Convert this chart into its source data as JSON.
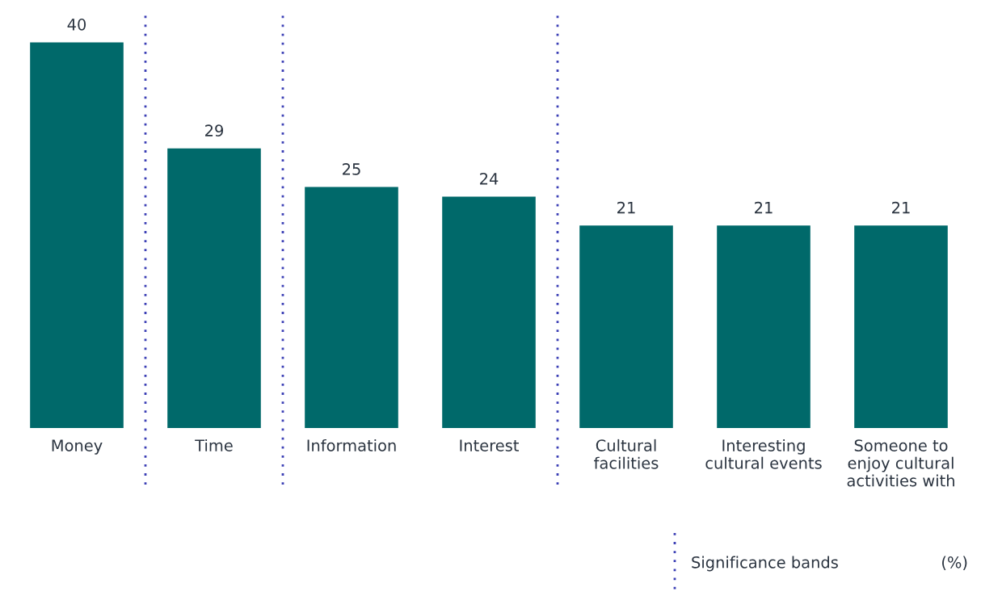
{
  "chart_data": {
    "type": "bar",
    "categories": [
      "Money",
      "Time",
      "Information",
      "Interest",
      "Cultural facilities",
      "Interesting cultural events",
      "Someone to enjoy cultural activities with"
    ],
    "values": [
      40,
      29,
      25,
      24,
      21,
      21,
      21
    ],
    "color": "#00696a",
    "data_labels": true,
    "annotations": [
      "Significance bands",
      "(%)"
    ],
    "grid": false
  }
}
